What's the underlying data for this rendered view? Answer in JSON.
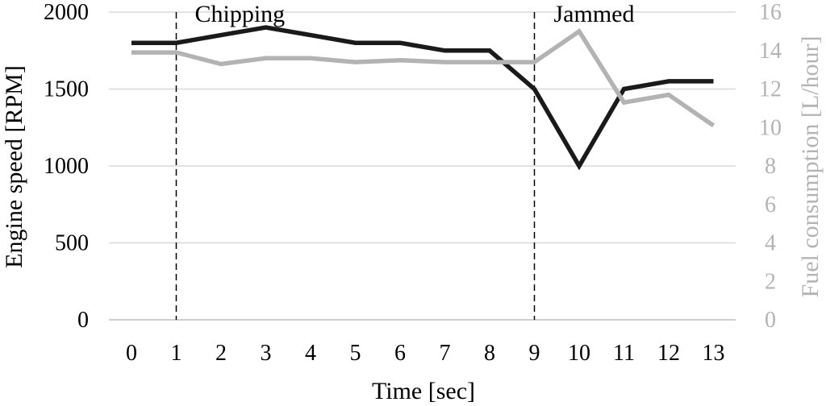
{
  "chart_data": {
    "type": "line",
    "title": "",
    "xlabel": "Time [sec]",
    "ylabel": "Engine speed [RPM]",
    "y2label": "Fuel consumption [L/hour]",
    "x": [
      0,
      1,
      2,
      3,
      4,
      5,
      6,
      7,
      8,
      9,
      10,
      11,
      12,
      13
    ],
    "ylim": [
      0,
      2000
    ],
    "y2lim": [
      0,
      16
    ],
    "yticks": [
      "0",
      "500",
      "1000",
      "1500",
      "2000"
    ],
    "y2ticks": [
      "0",
      "2",
      "4",
      "6",
      "8",
      "10",
      "12",
      "14",
      "16"
    ],
    "grid": "horizontal",
    "series": [
      {
        "axis": "left",
        "color": "#1a1a1a",
        "values": [
          1800,
          1800,
          1850,
          1900,
          1850,
          1800,
          1800,
          1750,
          1750,
          1500,
          1000,
          1500,
          1550,
          1550
        ]
      },
      {
        "axis": "right",
        "color": "#b3b3b3",
        "values": [
          13.9,
          13.9,
          13.3,
          13.6,
          13.6,
          13.4,
          13.5,
          13.4,
          13.4,
          13.4,
          15.0,
          11.3,
          11.7,
          10.1
        ]
      }
    ],
    "annotations": [
      {
        "x": 1,
        "label": "Chipping"
      },
      {
        "x": 9,
        "label": "Jammed"
      }
    ]
  }
}
